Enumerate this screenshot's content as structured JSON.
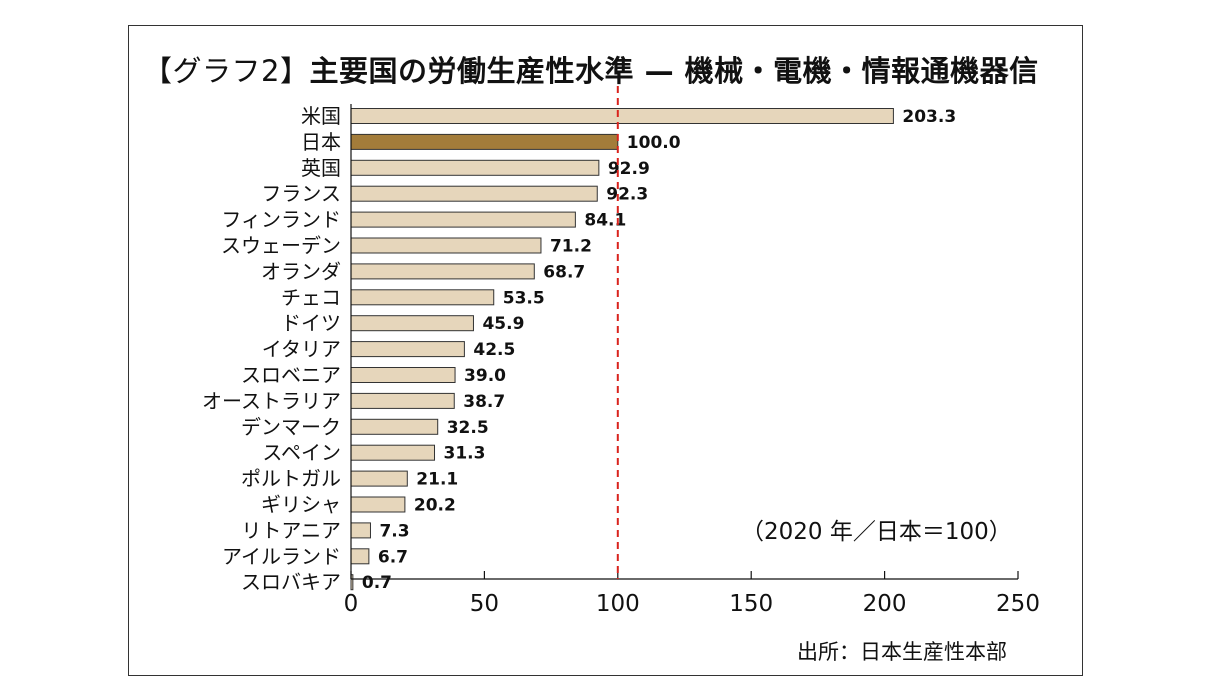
{
  "chart_data": {
    "type": "bar",
    "orientation": "horizontal",
    "title_bracket_open": "【",
    "title_tag": "グラフ2",
    "title_bracket_close": "】",
    "title_main": "主要国の労働生産性水準 — 機械・電機・情報通機器信",
    "note": "（2020 年／日本＝100）",
    "source": "出所：日本生産性本部",
    "categories": [
      "米国",
      "日本",
      "英国",
      "フランス",
      "フィンランド",
      "スウェーデン",
      "オランダ",
      "チェコ",
      "ドイツ",
      "イタリア",
      "スロベニア",
      "オーストラリア",
      "デンマーク",
      "スペイン",
      "ポルトガル",
      "ギリシャ",
      "リトアニア",
      "アイルランド",
      "スロバキア"
    ],
    "values": [
      203.3,
      100.0,
      92.9,
      92.3,
      84.1,
      71.2,
      68.7,
      53.5,
      45.9,
      42.5,
      39.0,
      38.7,
      32.5,
      31.3,
      21.1,
      20.2,
      7.3,
      6.7,
      0.7
    ],
    "value_labels": [
      "203.3",
      "100.0",
      "92.9",
      "92.3",
      "84.1",
      "71.2",
      "68.7",
      "53.5",
      "45.9",
      "42.5",
      "39.0",
      "38.7",
      "32.5",
      "31.3",
      "21.1",
      "20.2",
      "7.3",
      "6.7",
      "0.7"
    ],
    "highlight_category": "日本",
    "reference_line": 100,
    "xlim": [
      0,
      250
    ],
    "xticks": [
      0,
      50,
      100,
      150,
      200,
      250
    ],
    "grid": false,
    "colors": {
      "bar": "#e6d6bb",
      "highlight": "#a37c3a",
      "bar_stroke": "#333333",
      "reference_line": "#d9231d"
    }
  }
}
